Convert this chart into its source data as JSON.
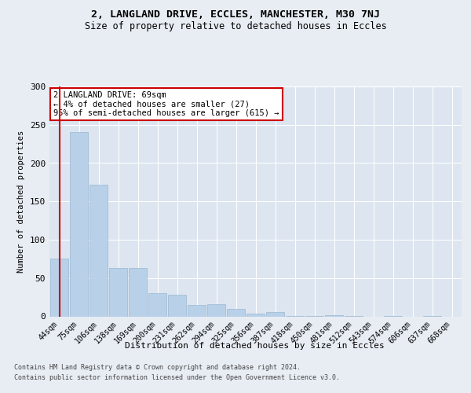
{
  "title1": "2, LANGLAND DRIVE, ECCLES, MANCHESTER, M30 7NJ",
  "title2": "Size of property relative to detached houses in Eccles",
  "xlabel": "Distribution of detached houses by size in Eccles",
  "ylabel": "Number of detached properties",
  "categories": [
    "44sqm",
    "75sqm",
    "106sqm",
    "138sqm",
    "169sqm",
    "200sqm",
    "231sqm",
    "262sqm",
    "294sqm",
    "325sqm",
    "356sqm",
    "387sqm",
    "418sqm",
    "450sqm",
    "481sqm",
    "512sqm",
    "543sqm",
    "574sqm",
    "606sqm",
    "637sqm",
    "668sqm"
  ],
  "values": [
    75,
    240,
    172,
    63,
    63,
    30,
    28,
    15,
    16,
    10,
    4,
    6,
    1,
    1,
    2,
    1,
    0,
    1,
    0,
    1,
    0
  ],
  "bar_color": "#b8d0e8",
  "bar_edge_color": "#9ab8d0",
  "highlight_color": "#cc0000",
  "annotation_text": "2 LANGLAND DRIVE: 69sqm\n← 4% of detached houses are smaller (27)\n95% of semi-detached houses are larger (615) →",
  "annotation_box_color": "#ffffff",
  "annotation_box_edge": "#cc0000",
  "ylim": [
    0,
    300
  ],
  "yticks": [
    0,
    50,
    100,
    150,
    200,
    250,
    300
  ],
  "footer1": "Contains HM Land Registry data © Crown copyright and database right 2024.",
  "footer2": "Contains public sector information licensed under the Open Government Licence v3.0.",
  "bg_color": "#e8edf4",
  "plot_bg_color": "#dce5f0",
  "title1_fontsize": 9.5,
  "title2_fontsize": 8.5,
  "ylabel_fontsize": 7.5,
  "xlabel_fontsize": 8,
  "tick_fontsize": 7,
  "footer_fontsize": 6
}
